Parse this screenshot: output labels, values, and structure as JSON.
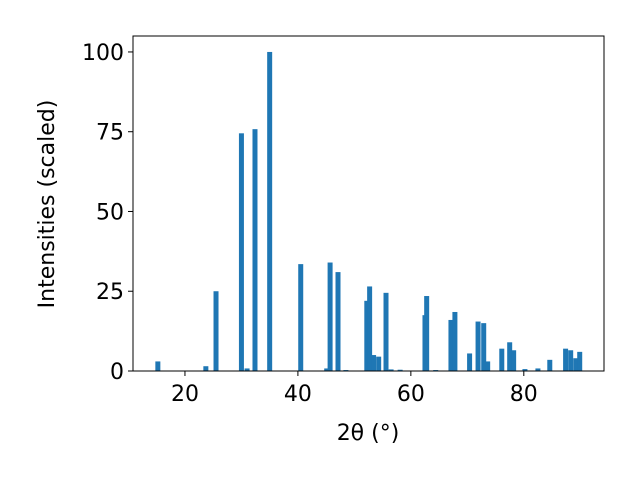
{
  "chart_data": {
    "type": "bar",
    "x_label": "2θ (°)",
    "y_label": "Intensities (scaled)",
    "x": [
      15.2,
      23.7,
      25.5,
      30.0,
      31.0,
      32.4,
      35.0,
      40.5,
      45.1,
      45.7,
      47.1,
      48.5,
      52.2,
      52.7,
      53.4,
      54.3,
      55.6,
      56.5,
      58.1,
      62.5,
      62.8,
      64.4,
      67.1,
      67.8,
      70.4,
      71.9,
      72.9,
      73.6,
      76.1,
      77.5,
      78.2,
      80.2,
      82.5,
      84.6,
      87.4,
      88.3,
      89.2,
      89.9
    ],
    "values": [
      3,
      1.5,
      25,
      74.5,
      0.8,
      75.8,
      100,
      33.5,
      0.8,
      34,
      31,
      0.3,
      22,
      26.5,
      5,
      4.5,
      24.5,
      0.5,
      0.4,
      17.5,
      23.5,
      0.3,
      16,
      18.5,
      5.5,
      15.5,
      15,
      3,
      7,
      9,
      6.5,
      0.6,
      0.8,
      3.5,
      7,
      6.5,
      4,
      6
    ],
    "color": "#1f77b4",
    "xlim": [
      10.8,
      94.2
    ],
    "xticks": [
      20,
      40,
      60,
      80
    ],
    "ylim": [
      0,
      105
    ],
    "yticks": [
      0,
      25,
      50,
      75,
      100
    ]
  }
}
